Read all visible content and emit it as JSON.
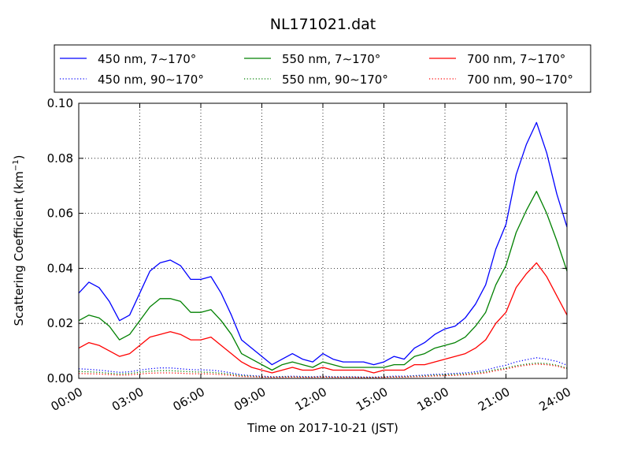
{
  "chart_data": {
    "type": "line",
    "title": "NL171021.dat",
    "xlabel": "Time on 2017-10-21 (JST)",
    "ylabel": "Scattering Coefficient (km",
    "ylabel_superscript": "−1",
    "ylabel_close": ")",
    "xlim": [
      0,
      24
    ],
    "ylim": [
      0.0,
      0.1
    ],
    "grid": true,
    "legend_position": "top",
    "x_ticks": [
      0,
      3,
      6,
      9,
      12,
      15,
      18,
      21,
      24
    ],
    "x_tick_labels": [
      "00:00",
      "03:00",
      "06:00",
      "09:00",
      "12:00",
      "15:00",
      "18:00",
      "21:00",
      "24:00"
    ],
    "y_ticks": [
      0.0,
      0.02,
      0.04,
      0.06,
      0.08,
      0.1
    ],
    "y_tick_labels": [
      "0.00",
      "0.02",
      "0.04",
      "0.06",
      "0.08",
      "0.10"
    ],
    "x": [
      0,
      0.5,
      1,
      1.5,
      2,
      2.5,
      3,
      3.5,
      4,
      4.5,
      5,
      5.5,
      6,
      6.5,
      7,
      7.5,
      8,
      8.5,
      9,
      9.5,
      10,
      10.5,
      11,
      11.5,
      12,
      12.5,
      13,
      13.5,
      14,
      14.5,
      15,
      15.5,
      16,
      16.5,
      17,
      17.5,
      18,
      18.5,
      19,
      19.5,
      20,
      20.5,
      21,
      21.5,
      22,
      22.5,
      23,
      23.5,
      24
    ],
    "series": [
      {
        "name": "450 nm, 7∼170°",
        "color": "#0000ff",
        "style": "solid",
        "values": [
          0.031,
          0.035,
          0.033,
          0.028,
          0.021,
          0.023,
          0.031,
          0.039,
          0.042,
          0.043,
          0.041,
          0.036,
          0.036,
          0.037,
          0.031,
          0.023,
          0.014,
          0.011,
          0.008,
          0.005,
          0.007,
          0.009,
          0.007,
          0.006,
          0.009,
          0.007,
          0.006,
          0.006,
          0.006,
          0.005,
          0.006,
          0.008,
          0.007,
          0.011,
          0.013,
          0.016,
          0.018,
          0.019,
          0.022,
          0.027,
          0.034,
          0.047,
          0.056,
          0.074,
          0.085,
          0.093,
          0.082,
          0.067,
          0.055
        ]
      },
      {
        "name": "450 nm, 90∼170°",
        "color": "#0000ff",
        "style": "dotted",
        "values": [
          0.0035,
          0.0033,
          0.003,
          0.0026,
          0.0022,
          0.0024,
          0.003,
          0.0035,
          0.0038,
          0.0038,
          0.0035,
          0.0032,
          0.0031,
          0.003,
          0.0026,
          0.002,
          0.0013,
          0.001,
          0.0008,
          0.0006,
          0.0007,
          0.0008,
          0.0007,
          0.0006,
          0.0008,
          0.0006,
          0.0006,
          0.0006,
          0.0005,
          0.0005,
          0.0006,
          0.0008,
          0.0008,
          0.001,
          0.0012,
          0.0015,
          0.0016,
          0.0018,
          0.002,
          0.0024,
          0.003,
          0.004,
          0.0048,
          0.006,
          0.0068,
          0.0075,
          0.007,
          0.0062,
          0.0048
        ]
      },
      {
        "name": "550 nm, 7∼170°",
        "color": "#008000",
        "style": "solid",
        "values": [
          0.021,
          0.023,
          0.022,
          0.019,
          0.014,
          0.016,
          0.021,
          0.026,
          0.029,
          0.029,
          0.028,
          0.024,
          0.024,
          0.025,
          0.021,
          0.016,
          0.009,
          0.007,
          0.005,
          0.003,
          0.005,
          0.006,
          0.005,
          0.004,
          0.006,
          0.005,
          0.004,
          0.004,
          0.004,
          0.004,
          0.004,
          0.005,
          0.005,
          0.008,
          0.009,
          0.011,
          0.012,
          0.013,
          0.015,
          0.019,
          0.024,
          0.034,
          0.041,
          0.053,
          0.061,
          0.068,
          0.06,
          0.05,
          0.039
        ]
      },
      {
        "name": "550 nm, 90∼170°",
        "color": "#008000",
        "style": "dotted",
        "values": [
          0.0025,
          0.0024,
          0.0022,
          0.0019,
          0.0016,
          0.0018,
          0.0022,
          0.0026,
          0.0028,
          0.0028,
          0.0026,
          0.0024,
          0.0023,
          0.0022,
          0.0019,
          0.0015,
          0.001,
          0.0008,
          0.0006,
          0.0005,
          0.0006,
          0.0006,
          0.0005,
          0.0005,
          0.0006,
          0.0005,
          0.0005,
          0.0005,
          0.0004,
          0.0004,
          0.0005,
          0.0006,
          0.0006,
          0.0008,
          0.0009,
          0.0012,
          0.0013,
          0.0015,
          0.0016,
          0.0019,
          0.0024,
          0.0032,
          0.0038,
          0.0046,
          0.0052,
          0.0056,
          0.0054,
          0.0048,
          0.0037
        ]
      },
      {
        "name": "700 nm, 7∼170°",
        "color": "#ff0000",
        "style": "solid",
        "values": [
          0.011,
          0.013,
          0.012,
          0.01,
          0.008,
          0.009,
          0.012,
          0.015,
          0.016,
          0.017,
          0.016,
          0.014,
          0.014,
          0.015,
          0.012,
          0.009,
          0.006,
          0.004,
          0.003,
          0.002,
          0.003,
          0.004,
          0.003,
          0.003,
          0.004,
          0.003,
          0.003,
          0.003,
          0.003,
          0.002,
          0.003,
          0.003,
          0.003,
          0.005,
          0.005,
          0.006,
          0.007,
          0.008,
          0.009,
          0.011,
          0.014,
          0.02,
          0.024,
          0.033,
          0.038,
          0.042,
          0.037,
          0.03,
          0.023
        ]
      },
      {
        "name": "700 nm, 90∼170°",
        "color": "#ff0000",
        "style": "dotted",
        "values": [
          0.0018,
          0.0017,
          0.0016,
          0.0014,
          0.0012,
          0.0013,
          0.0016,
          0.0019,
          0.002,
          0.002,
          0.0019,
          0.0017,
          0.0017,
          0.0016,
          0.0014,
          0.0011,
          0.0007,
          0.0006,
          0.0005,
          0.0004,
          0.0004,
          0.0005,
          0.0004,
          0.0004,
          0.0005,
          0.0004,
          0.0004,
          0.0004,
          0.0003,
          0.0003,
          0.0004,
          0.0005,
          0.0005,
          0.0006,
          0.0007,
          0.0009,
          0.001,
          0.0011,
          0.0013,
          0.0016,
          0.002,
          0.0028,
          0.0034,
          0.0042,
          0.0048,
          0.0052,
          0.005,
          0.0045,
          0.0035
        ]
      }
    ]
  }
}
